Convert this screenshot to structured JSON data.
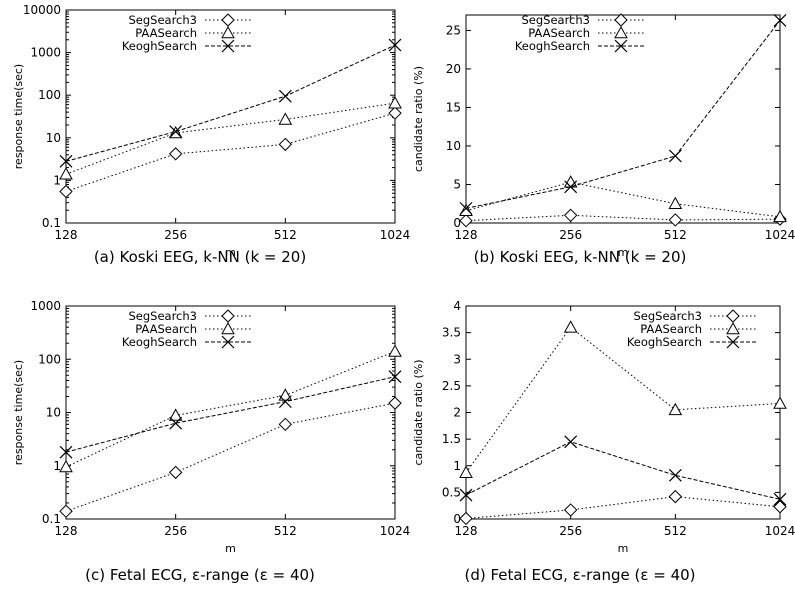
{
  "chart_data": [
    {
      "id": "a",
      "type": "line",
      "caption": "(a) Koski EEG, k-NN (k = 20)",
      "xlabel": "m",
      "ylabel": "response time(sec)",
      "yscale": "log",
      "ylim": [
        0.1,
        10000
      ],
      "yticks": [
        "0.1",
        "1",
        "10",
        "100",
        "1000",
        "10000"
      ],
      "categories": [
        "128",
        "256",
        "512",
        "1024"
      ],
      "legend_position": "top-left",
      "series": [
        {
          "name": "SegSearch3",
          "marker": "diamond",
          "values": [
            0.55,
            4.2,
            7,
            38
          ]
        },
        {
          "name": "PAASearch",
          "marker": "triangle",
          "values": [
            1.4,
            13,
            27,
            65
          ]
        },
        {
          "name": "KeoghSearch",
          "marker": "x",
          "values": [
            2.8,
            14,
            95,
            1500
          ]
        }
      ]
    },
    {
      "id": "b",
      "type": "line",
      "caption": "(b) Koski EEG, k-NN (k = 20)",
      "xlabel": "m",
      "ylabel": "candidate ratio (%)",
      "yscale": "linear",
      "ylim": [
        0,
        27
      ],
      "yticks": [
        "0",
        "5",
        "10",
        "15",
        "20",
        "25"
      ],
      "categories": [
        "128",
        "256",
        "512",
        "1024"
      ],
      "legend_position": "top-left",
      "series": [
        {
          "name": "SegSearch3",
          "marker": "diamond",
          "values": [
            0.3,
            1.0,
            0.4,
            0.5
          ]
        },
        {
          "name": "PAASearch",
          "marker": "triangle",
          "values": [
            1.6,
            5.3,
            2.5,
            0.8
          ]
        },
        {
          "name": "KeoghSearch",
          "marker": "x",
          "values": [
            1.9,
            4.7,
            8.7,
            26.3
          ]
        }
      ]
    },
    {
      "id": "c",
      "type": "line",
      "caption": "(c) Fetal ECG, ε-range (ε = 40)",
      "xlabel": "m",
      "ylabel": "response time(sec)",
      "yscale": "log",
      "ylim": [
        0.1,
        1000
      ],
      "yticks": [
        "0.1",
        "1",
        "10",
        "100",
        "1000"
      ],
      "categories": [
        "128",
        "256",
        "512",
        "1024"
      ],
      "legend_position": "top-left",
      "series": [
        {
          "name": "SegSearch3",
          "marker": "diamond",
          "values": [
            0.14,
            0.75,
            6,
            15
          ]
        },
        {
          "name": "PAASearch",
          "marker": "triangle",
          "values": [
            0.95,
            8.8,
            21,
            140
          ]
        },
        {
          "name": "KeoghSearch",
          "marker": "x",
          "values": [
            1.8,
            6.3,
            16,
            47
          ]
        }
      ]
    },
    {
      "id": "d",
      "type": "line",
      "caption": "(d) Fetal ECG, ε-range (ε = 40)",
      "xlabel": "m",
      "ylabel": "candidate ratio (%)",
      "yscale": "linear",
      "ylim": [
        0,
        4
      ],
      "yticks": [
        "0",
        "0.5",
        "1",
        "1.5",
        "2",
        "2.5",
        "3",
        "3.5",
        "4"
      ],
      "categories": [
        "128",
        "256",
        "512",
        "1024"
      ],
      "legend_position": "top-right",
      "series": [
        {
          "name": "SegSearch3",
          "marker": "diamond",
          "values": [
            0.01,
            0.17,
            0.42,
            0.23
          ]
        },
        {
          "name": "PAASearch",
          "marker": "triangle",
          "values": [
            0.87,
            3.6,
            2.05,
            2.17
          ]
        },
        {
          "name": "KeoghSearch",
          "marker": "x",
          "values": [
            0.45,
            1.45,
            0.82,
            0.37
          ]
        }
      ]
    }
  ]
}
